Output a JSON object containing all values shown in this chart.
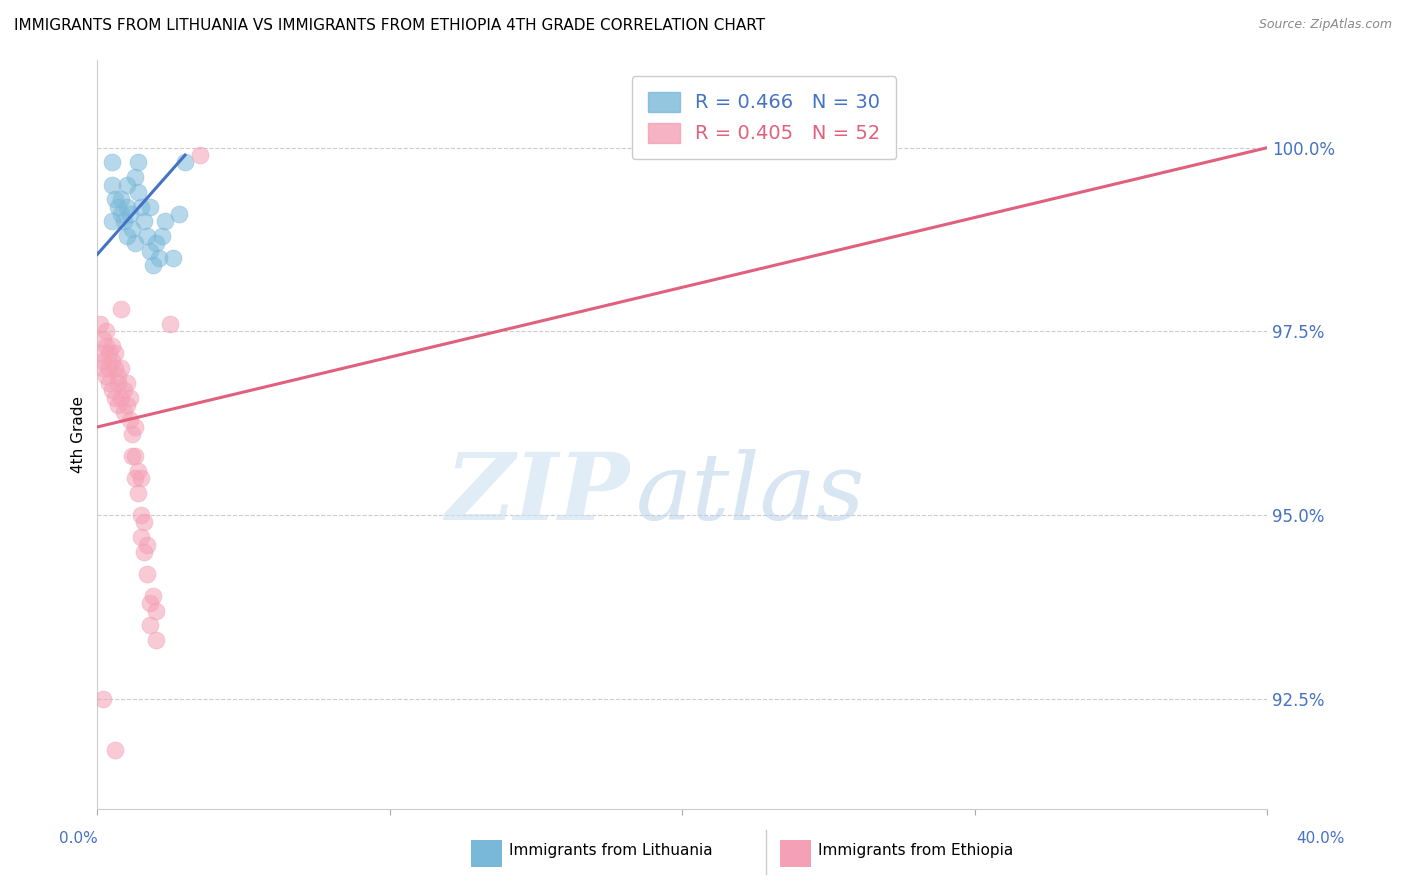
{
  "title": "IMMIGRANTS FROM LITHUANIA VS IMMIGRANTS FROM ETHIOPIA 4TH GRADE CORRELATION CHART",
  "source": "Source: ZipAtlas.com",
  "ylabel": "4th Grade",
  "yticks": [
    92.5,
    95.0,
    97.5,
    100.0
  ],
  "ytick_labels": [
    "92.5%",
    "95.0%",
    "97.5%",
    "100.0%"
  ],
  "xmin": 0.0,
  "xmax": 40.0,
  "ymin": 91.0,
  "ymax": 101.2,
  "legend_label_blue": "Immigrants from Lithuania",
  "legend_label_pink": "Immigrants from Ethiopia",
  "blue_color": "#7ab8d9",
  "pink_color": "#f4a0b5",
  "blue_line_color": "#4472c4",
  "pink_line_color": "#e0607e",
  "axis_color": "#4472c4",
  "grid_color": "#cccccc",
  "blue_scatter": [
    [
      0.5,
      99.8
    ],
    [
      0.5,
      99.5
    ],
    [
      0.7,
      99.2
    ],
    [
      0.8,
      99.1
    ],
    [
      0.8,
      99.3
    ],
    [
      0.9,
      99.0
    ],
    [
      1.0,
      99.5
    ],
    [
      1.0,
      99.2
    ],
    [
      1.0,
      98.8
    ],
    [
      1.1,
      99.1
    ],
    [
      1.2,
      98.9
    ],
    [
      1.3,
      99.6
    ],
    [
      1.3,
      98.7
    ],
    [
      1.4,
      99.8
    ],
    [
      1.4,
      99.4
    ],
    [
      1.5,
      99.2
    ],
    [
      1.6,
      99.0
    ],
    [
      1.7,
      98.8
    ],
    [
      1.8,
      99.2
    ],
    [
      1.8,
      98.6
    ],
    [
      1.9,
      98.4
    ],
    [
      2.0,
      98.7
    ],
    [
      2.1,
      98.5
    ],
    [
      2.2,
      98.8
    ],
    [
      2.3,
      99.0
    ],
    [
      2.6,
      98.5
    ],
    [
      2.8,
      99.1
    ],
    [
      3.0,
      99.8
    ],
    [
      0.5,
      99.0
    ],
    [
      0.6,
      99.3
    ]
  ],
  "pink_scatter": [
    [
      0.1,
      97.6
    ],
    [
      0.1,
      97.2
    ],
    [
      0.2,
      97.1
    ],
    [
      0.2,
      97.4
    ],
    [
      0.2,
      97.0
    ],
    [
      0.3,
      97.3
    ],
    [
      0.3,
      96.9
    ],
    [
      0.3,
      97.5
    ],
    [
      0.4,
      97.0
    ],
    [
      0.4,
      97.2
    ],
    [
      0.4,
      96.8
    ],
    [
      0.5,
      97.1
    ],
    [
      0.5,
      96.7
    ],
    [
      0.5,
      97.3
    ],
    [
      0.6,
      97.0
    ],
    [
      0.6,
      96.6
    ],
    [
      0.6,
      97.2
    ],
    [
      0.7,
      96.8
    ],
    [
      0.7,
      96.5
    ],
    [
      0.7,
      96.9
    ],
    [
      0.8,
      96.6
    ],
    [
      0.8,
      97.0
    ],
    [
      0.9,
      96.7
    ],
    [
      0.9,
      96.4
    ],
    [
      1.0,
      96.5
    ],
    [
      1.0,
      96.8
    ],
    [
      1.1,
      96.3
    ],
    [
      1.1,
      96.6
    ],
    [
      1.2,
      96.1
    ],
    [
      1.2,
      95.8
    ],
    [
      1.3,
      95.5
    ],
    [
      1.3,
      95.8
    ],
    [
      1.3,
      96.2
    ],
    [
      1.4,
      95.6
    ],
    [
      1.4,
      95.3
    ],
    [
      1.5,
      95.5
    ],
    [
      1.5,
      95.0
    ],
    [
      1.5,
      94.7
    ],
    [
      1.6,
      94.9
    ],
    [
      1.6,
      94.5
    ],
    [
      1.7,
      94.2
    ],
    [
      1.7,
      94.6
    ],
    [
      1.8,
      93.8
    ],
    [
      1.8,
      93.5
    ],
    [
      1.9,
      93.9
    ],
    [
      2.0,
      93.3
    ],
    [
      2.0,
      93.7
    ],
    [
      2.5,
      97.6
    ],
    [
      0.2,
      92.5
    ],
    [
      0.6,
      91.8
    ],
    [
      0.8,
      97.8
    ],
    [
      3.5,
      99.9
    ]
  ],
  "blue_trendline_x": [
    0.0,
    3.0
  ],
  "blue_trendline_y": [
    98.55,
    99.9
  ],
  "pink_trendline_x": [
    0.0,
    40.0
  ],
  "pink_trendline_y": [
    96.2,
    100.0
  ],
  "title_fontsize": 11,
  "watermark_zip": "ZIP",
  "watermark_atlas": "atlas",
  "watermark_color_zip": "#ccdff0",
  "watermark_color_atlas": "#b0c8e0"
}
